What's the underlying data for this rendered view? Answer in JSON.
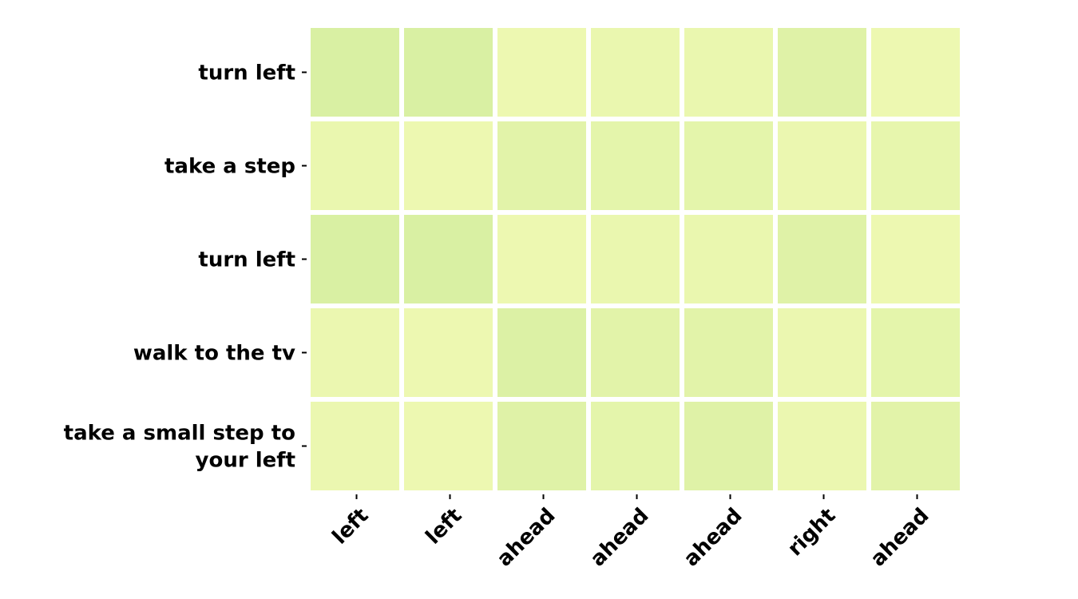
{
  "chart_data": {
    "type": "heatmap",
    "title": "",
    "xlabel": "",
    "ylabel": "",
    "rows": [
      "turn left",
      "take a step",
      "turn left",
      "walk to the tv",
      "take a small step to your left"
    ],
    "columns": [
      "left",
      "left",
      "ahead",
      "ahead",
      "ahead",
      "right",
      "ahead"
    ],
    "values": [
      [
        0.4,
        0.4,
        0.05,
        0.1,
        0.1,
        0.3,
        0.05
      ],
      [
        0.1,
        0.05,
        0.25,
        0.2,
        0.2,
        0.08,
        0.15
      ],
      [
        0.4,
        0.4,
        0.05,
        0.1,
        0.1,
        0.3,
        0.05
      ],
      [
        0.08,
        0.05,
        0.35,
        0.25,
        0.25,
        0.08,
        0.2
      ],
      [
        0.08,
        0.05,
        0.3,
        0.2,
        0.3,
        0.08,
        0.25
      ]
    ],
    "colormap": {
      "low": "#edf8b1",
      "high": "#d9f0a3"
    },
    "grid": false,
    "legend": "none"
  }
}
